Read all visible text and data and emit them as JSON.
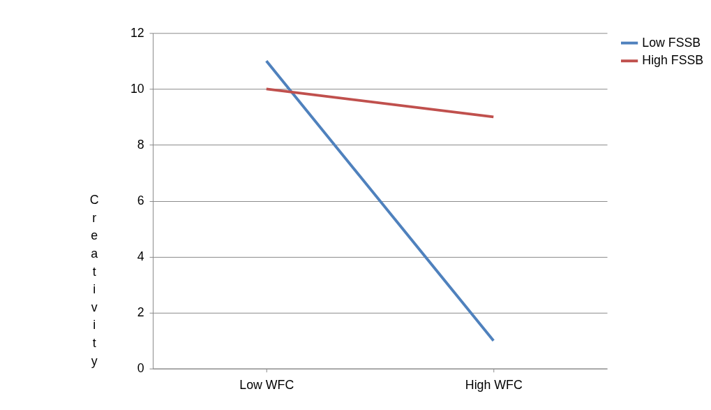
{
  "chart_data": {
    "type": "line",
    "ylabel": "Creativity",
    "categories": [
      "Low WFC",
      "High WFC"
    ],
    "series": [
      {
        "name": "Low FSSB",
        "color": "#4f81bd",
        "values": [
          11,
          1
        ]
      },
      {
        "name": "High FSSB",
        "color": "#c0504d",
        "values": [
          10,
          9
        ]
      }
    ],
    "ylim": [
      0,
      12
    ],
    "yticks": [
      0,
      2,
      4,
      6,
      8,
      10,
      12
    ],
    "grid": "y",
    "legend": "right",
    "marker": "none",
    "line_style": "solid"
  }
}
